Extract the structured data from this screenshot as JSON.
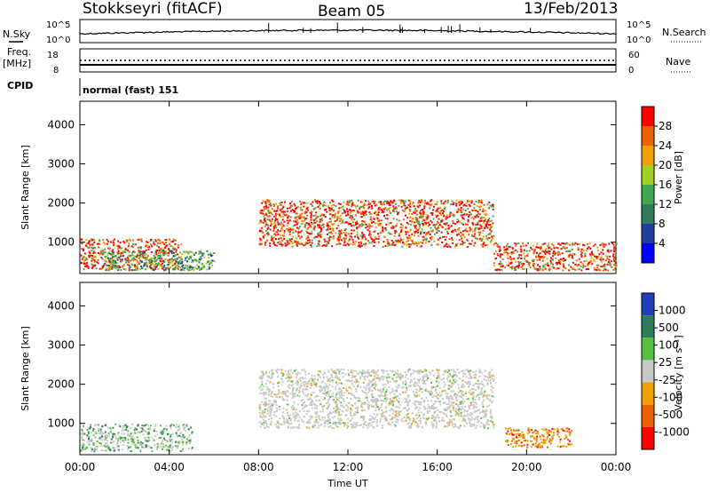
{
  "header": {
    "station": "Stokkseyri (fitACF)",
    "beam": "Beam 05",
    "date": "13/Feb/2013"
  },
  "top_panel": {
    "left_label": "N.Sky",
    "right_label": "N.Search",
    "left_ticks": [
      "10^5",
      "10^0"
    ],
    "right_ticks": [
      "10^5",
      "10^0"
    ]
  },
  "freq_panel": {
    "left_label_1": "Freq.",
    "left_label_2": "[MHz]",
    "right_label": "Nave",
    "left_ticks": [
      "18",
      "8"
    ],
    "right_ticks": [
      "60",
      "0"
    ]
  },
  "cpid": {
    "label": "CPID",
    "value": "normal (fast) 151"
  },
  "colors": {
    "power_scale": [
      "#0000ff",
      "#1f3f9f",
      "#2e7d5a",
      "#3fa850",
      "#a0d020",
      "#f0a000",
      "#f06000",
      "#ff0000"
    ],
    "velocity_scale": [
      "#1f3fbf",
      "#2e7d5a",
      "#55c040",
      "#c8c8c8",
      "#f0a000",
      "#f06000",
      "#ff0000"
    ]
  },
  "chart_data": [
    {
      "type": "heatmap",
      "title": "",
      "xlabel": "",
      "ylabel": "Slant Range [km]",
      "xlim": [
        "00:00",
        "00:00"
      ],
      "ylim": [
        200,
        4600
      ],
      "y_ticks": [
        "1000",
        "2000",
        "3000",
        "4000"
      ],
      "colorbar": {
        "label": "Power [dB]",
        "ticks": [
          "4",
          "8",
          "12",
          "16",
          "20",
          "24",
          "28"
        ],
        "range": [
          0,
          32
        ]
      },
      "scatter_regions": [
        {
          "t_start": 0.0,
          "t_end": 4.5,
          "range_low": 300,
          "range_high": 1100,
          "level": "high"
        },
        {
          "t_start": 1.0,
          "t_end": 6.0,
          "range_low": 300,
          "range_high": 800,
          "level": "medium"
        },
        {
          "t_start": 8.0,
          "t_end": 18.5,
          "range_low": 900,
          "range_high": 2100,
          "level": "high"
        },
        {
          "t_start": 18.5,
          "t_end": 24.0,
          "range_low": 300,
          "range_high": 1000,
          "level": "high"
        }
      ]
    },
    {
      "type": "heatmap",
      "title": "",
      "xlabel": "Time UT",
      "ylabel": "Slant Range [km]",
      "xlim": [
        "00:00",
        "00:00"
      ],
      "x_ticks": [
        "00:00",
        "04:00",
        "08:00",
        "12:00",
        "16:00",
        "20:00",
        "00:00"
      ],
      "ylim": [
        200,
        4600
      ],
      "y_ticks": [
        "1000",
        "2000",
        "3000",
        "4000"
      ],
      "colorbar": {
        "label": "Velocity [m s⁻¹]",
        "ticks": [
          "1000",
          "500",
          "100",
          "25",
          "-25",
          "-100",
          "-500",
          "-1000"
        ],
        "range": [
          -1000,
          1000
        ]
      },
      "scatter_regions": [
        {
          "t_start": 0.0,
          "t_end": 5.0,
          "range_low": 300,
          "range_high": 1000,
          "velocity": 50
        },
        {
          "t_start": 8.0,
          "t_end": 18.5,
          "range_low": 900,
          "range_high": 2400,
          "velocity": 0
        },
        {
          "t_start": 19.0,
          "t_end": 22.0,
          "range_low": 400,
          "range_high": 900,
          "velocity": -100
        }
      ]
    }
  ]
}
